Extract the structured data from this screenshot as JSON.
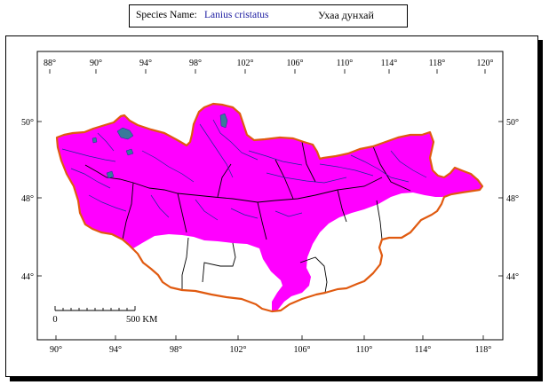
{
  "header": {
    "species_label": "Species Name:",
    "scientific_name": "Lanius cristatus",
    "local_name": "Ухаа дунхай"
  },
  "map": {
    "top_lon_labels": [
      "88°",
      "90°",
      "94°",
      "98°",
      "102°",
      "106°",
      "110°",
      "114°",
      "118°",
      "120°"
    ],
    "bottom_lon_labels": [
      "90°",
      "94°",
      "98°",
      "102°",
      "106°",
      "110°",
      "114°",
      "118°"
    ],
    "left_lat_labels": [
      "50°",
      "48°",
      "44°"
    ],
    "right_lat_labels": [
      "50°",
      "48°",
      "44°"
    ],
    "scale_bar": {
      "start_label": "0",
      "end_label": "500 KM"
    },
    "colors": {
      "range_fill": "#ff00ff",
      "border": "#e05a10",
      "rivers": "#1a2a9a",
      "lakes": "#3a7a9a",
      "admin_lines": "#000000"
    }
  }
}
